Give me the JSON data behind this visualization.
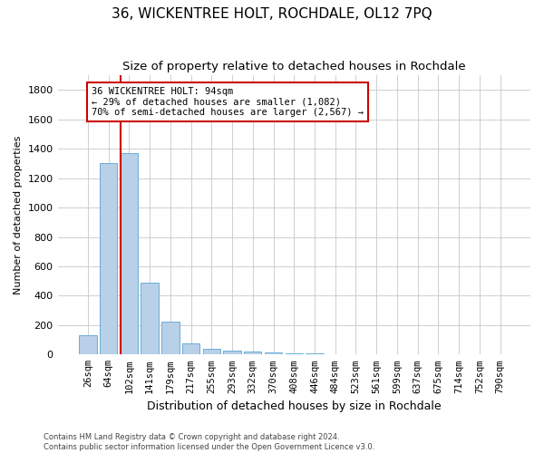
{
  "title": "36, WICKENTREE HOLT, ROCHDALE, OL12 7PQ",
  "subtitle": "Size of property relative to detached houses in Rochdale",
  "xlabel": "Distribution of detached houses by size in Rochdale",
  "ylabel": "Number of detached properties",
  "categories": [
    "26sqm",
    "64sqm",
    "102sqm",
    "141sqm",
    "179sqm",
    "217sqm",
    "255sqm",
    "293sqm",
    "332sqm",
    "370sqm",
    "408sqm",
    "446sqm",
    "484sqm",
    "523sqm",
    "561sqm",
    "599sqm",
    "637sqm",
    "675sqm",
    "714sqm",
    "752sqm",
    "790sqm"
  ],
  "values": [
    130,
    1300,
    1370,
    490,
    225,
    75,
    40,
    25,
    18,
    12,
    8,
    5,
    3,
    0,
    0,
    0,
    0,
    0,
    0,
    0,
    0
  ],
  "bar_color": "#b8d0e8",
  "bar_edge_color": "#6aaed6",
  "annotation_text": "36 WICKENTREE HOLT: 94sqm\n← 29% of detached houses are smaller (1,082)\n70% of semi-detached houses are larger (2,567) →",
  "annotation_box_color": "#ffffff",
  "annotation_box_edge_color": "#cc0000",
  "property_line_color": "#cc0000",
  "property_line_x": 1.57,
  "ylim": [
    0,
    1900
  ],
  "yticks": [
    0,
    200,
    400,
    600,
    800,
    1000,
    1200,
    1400,
    1600,
    1800
  ],
  "footer_line1": "Contains HM Land Registry data © Crown copyright and database right 2024.",
  "footer_line2": "Contains public sector information licensed under the Open Government Licence v3.0.",
  "background_color": "#ffffff",
  "grid_color": "#c8c8c8",
  "title_fontsize": 11,
  "subtitle_fontsize": 9.5,
  "ylabel_fontsize": 8,
  "xlabel_fontsize": 9,
  "tick_fontsize": 7.5,
  "ytick_fontsize": 8,
  "footer_fontsize": 6,
  "annotation_fontsize": 7.5
}
